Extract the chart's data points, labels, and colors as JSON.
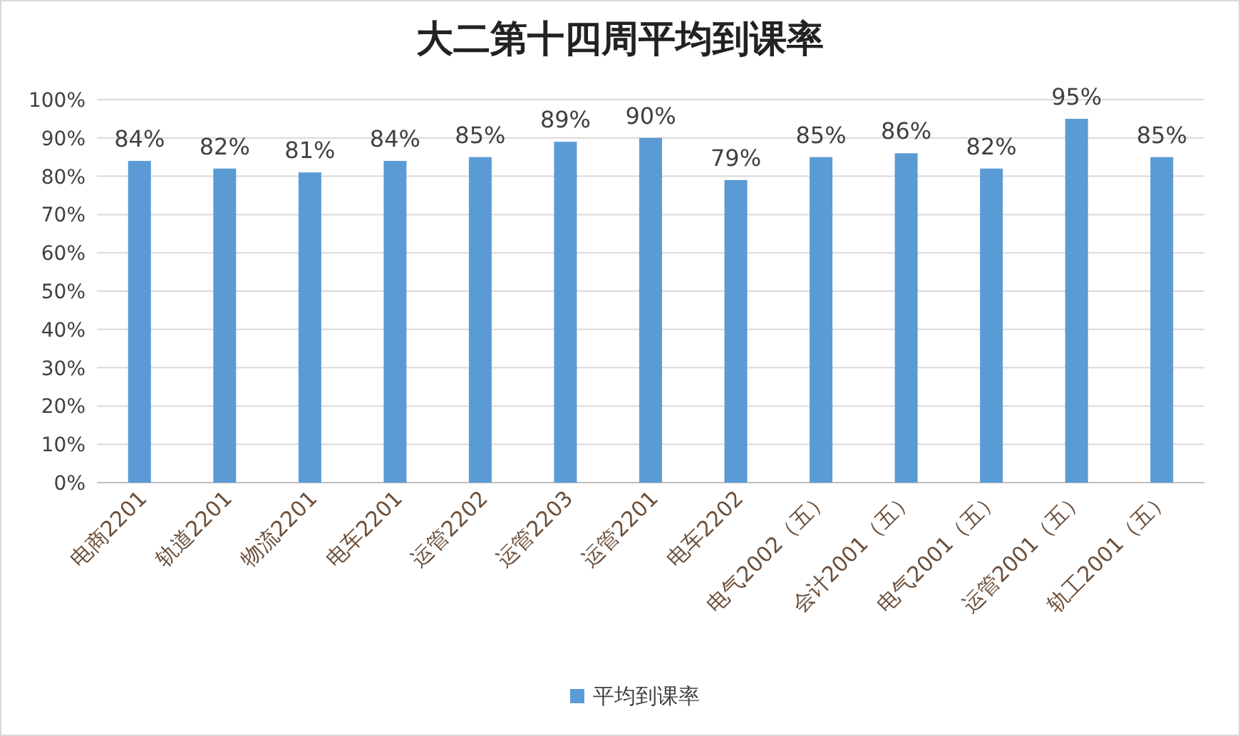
{
  "chart_data": {
    "type": "bar",
    "title": "大二第十四周平均到课率",
    "categories": [
      "电商2201",
      "轨道2201",
      "物流2201",
      "电车2201",
      "运管2202",
      "运管2203",
      "运管2201",
      "电车2202",
      "电气2002（五）",
      "会计2001（五）",
      "电气2001（五）",
      "运管2001（五）",
      "轨工2001（五）"
    ],
    "series": [
      {
        "name": "平均到课率",
        "color": "#5b9bd5",
        "values": [
          84,
          82,
          81,
          84,
          85,
          89,
          90,
          79,
          85,
          86,
          82,
          95,
          85
        ],
        "value_labels": [
          "84%",
          "82%",
          "81%",
          "84%",
          "85%",
          "89%",
          "90%",
          "79%",
          "85%",
          "86%",
          "82%",
          "95%",
          "85%"
        ]
      }
    ],
    "ylim": [
      0,
      100
    ],
    "yticks": [
      {
        "value": 0,
        "label": "0%"
      },
      {
        "value": 10,
        "label": "10%"
      },
      {
        "value": 20,
        "label": "20%"
      },
      {
        "value": 30,
        "label": "30%"
      },
      {
        "value": 40,
        "label": "40%"
      },
      {
        "value": 50,
        "label": "50%"
      },
      {
        "value": 60,
        "label": "60%"
      },
      {
        "value": 70,
        "label": "70%"
      },
      {
        "value": 80,
        "label": "80%"
      },
      {
        "value": 90,
        "label": "90%"
      },
      {
        "value": 100,
        "label": "100%"
      }
    ],
    "grid": "y",
    "legend": "bottom"
  }
}
